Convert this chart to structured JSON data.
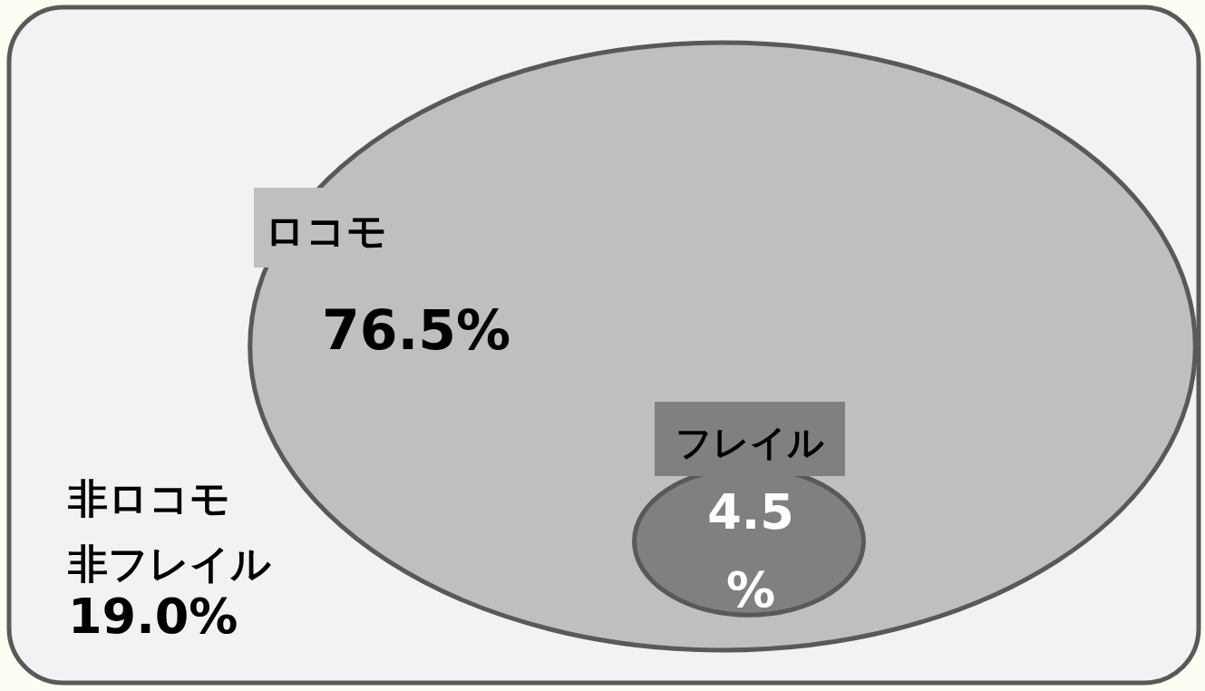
{
  "chart_data": {
    "type": "other",
    "categories": [
      "ロコモ",
      "フレイル",
      "非ロコモ非フレイル"
    ],
    "values": [
      76.5,
      4.5,
      19.0
    ],
    "colors": [
      "#bfbfbf",
      "#808080",
      "#f2f2f2"
    ],
    "value_labels": [
      "76.5%",
      "4.5\n%",
      "19.0%"
    ]
  }
}
